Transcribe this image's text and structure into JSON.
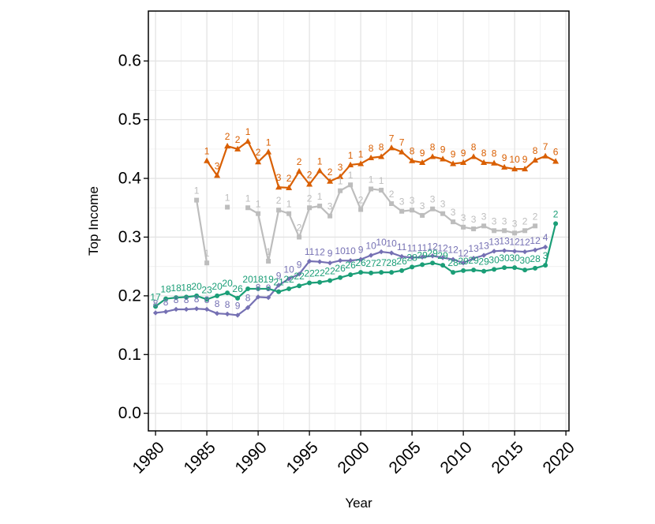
{
  "chart_data": {
    "type": "line",
    "xlabel": "Year",
    "ylabel": "Top Income",
    "xlim": [
      1979.3,
      2020.3
    ],
    "ylim": [
      -0.03,
      0.685
    ],
    "x_ticks": [
      "1980",
      "1985",
      "1990",
      "1995",
      "2000",
      "2005",
      "2010",
      "2015",
      "2020"
    ],
    "y_ticks": [
      "0.0",
      "0.1",
      "0.2",
      "0.3",
      "0.4",
      "0.5",
      "0.6"
    ],
    "grid": true,
    "legend": "none",
    "series": [
      {
        "color": "#D95F02",
        "marker": "triangle",
        "x": [
          1985,
          1986,
          1987,
          1988,
          1989,
          1990,
          1991,
          1992,
          1993,
          1994,
          1995,
          1996,
          1997,
          1998,
          1999,
          2000,
          2001,
          2002,
          2003,
          2004,
          2005,
          2006,
          2007,
          2008,
          2009,
          2010,
          2011,
          2012,
          2013,
          2014,
          2015,
          2016,
          2017,
          2018,
          2019
        ],
        "y": [
          0.43,
          0.405,
          0.455,
          0.45,
          0.463,
          0.428,
          0.445,
          0.385,
          0.384,
          0.412,
          0.39,
          0.413,
          0.395,
          0.403,
          0.423,
          0.425,
          0.435,
          0.437,
          0.452,
          0.445,
          0.43,
          0.427,
          0.437,
          0.433,
          0.425,
          0.427,
          0.437,
          0.427,
          0.426,
          0.419,
          0.416,
          0.416,
          0.431,
          0.438,
          0.429
        ],
        "labels": [
          "1",
          "3",
          "2",
          "2",
          "1",
          "2",
          "1",
          "3",
          "2",
          "2",
          "2",
          "1",
          "2",
          "3",
          "1",
          "1",
          "8",
          "8",
          "7",
          "7",
          "8",
          "9",
          "8",
          "9",
          "9",
          "9",
          "8",
          "8",
          "8",
          "9",
          "10",
          "9",
          "8",
          "7",
          "6"
        ]
      },
      {
        "color": "#BDBDBD",
        "marker": "square",
        "x": [
          1984,
          1985,
          null,
          1987,
          null,
          1989,
          1990,
          1991,
          1992,
          1993,
          1994,
          1995,
          1996,
          1997,
          1998,
          1999,
          2000,
          2001,
          2002,
          2003,
          2004,
          2005,
          2006,
          2007,
          2008,
          2009,
          2010,
          2011,
          2012,
          2013,
          2014,
          2015,
          2016,
          2017
        ],
        "y": [
          0.363,
          0.256,
          null,
          0.351,
          null,
          0.35,
          0.34,
          0.259,
          0.346,
          0.34,
          0.3,
          0.35,
          0.353,
          0.336,
          0.379,
          0.389,
          0.347,
          0.382,
          0.38,
          0.357,
          0.344,
          0.346,
          0.337,
          0.348,
          0.34,
          0.326,
          0.317,
          0.314,
          0.319,
          0.311,
          0.311,
          0.307,
          0.311,
          0.319
        ],
        "labels": [
          "1",
          "1",
          "",
          "1",
          "",
          "1",
          "1",
          "1",
          "2",
          "1",
          "2",
          "2",
          "1",
          "3",
          "1",
          "1",
          "2",
          "1",
          "1",
          "2",
          "3",
          "3",
          "3",
          "3",
          "3",
          "3",
          "3",
          "3",
          "3",
          "3",
          "3",
          "3",
          "2",
          "2"
        ]
      },
      {
        "color": "#7570B3",
        "marker": "diamond",
        "x": [
          1980,
          1981,
          1982,
          1983,
          1984,
          1985,
          1986,
          1987,
          1988,
          1989,
          1990,
          1991,
          1992,
          1993,
          1994,
          1995,
          1996,
          1997,
          1998,
          1999,
          2000,
          2001,
          2002,
          2003,
          2004,
          2005,
          2006,
          2007,
          2008,
          2009,
          2010,
          2011,
          2012,
          2013,
          2014,
          2015,
          2016,
          2017,
          2018
        ],
        "y": [
          0.171,
          0.173,
          0.177,
          0.177,
          0.178,
          0.177,
          0.17,
          0.169,
          0.167,
          0.18,
          0.198,
          0.197,
          0.218,
          0.229,
          0.237,
          0.259,
          0.258,
          0.256,
          0.26,
          0.26,
          0.262,
          0.269,
          0.275,
          0.273,
          0.267,
          0.265,
          0.266,
          0.268,
          0.265,
          0.262,
          0.256,
          0.264,
          0.269,
          0.276,
          0.277,
          0.276,
          0.275,
          0.278,
          0.283
        ],
        "labels": [
          "8",
          "8",
          "8",
          "8",
          "8",
          "8",
          "8",
          "8",
          "9",
          "8",
          "8",
          "9",
          "9",
          "10",
          "9",
          "11",
          "12",
          "9",
          "10",
          "10",
          "9",
          "10",
          "10",
          "10",
          "11",
          "11",
          "11",
          "12",
          "12",
          "12",
          "12",
          "13",
          "13",
          "13",
          "13",
          "12",
          "12",
          "12",
          "4"
        ]
      },
      {
        "color": "#1B9E77",
        "marker": "circle",
        "x": [
          1980,
          1981,
          1982,
          1983,
          1984,
          1985,
          1986,
          1987,
          1988,
          1989,
          1990,
          1991,
          1992,
          1993,
          1994,
          1995,
          1996,
          1997,
          1998,
          1999,
          2000,
          2001,
          2002,
          2003,
          2004,
          2005,
          2006,
          2007,
          2008,
          2009,
          2010,
          2011,
          2012,
          2013,
          2014,
          2015,
          2016,
          2017,
          2018,
          2019
        ],
        "y": [
          0.182,
          0.195,
          0.197,
          0.198,
          0.2,
          0.194,
          0.2,
          0.205,
          0.196,
          0.212,
          0.212,
          0.212,
          0.207,
          0.212,
          0.217,
          0.222,
          0.223,
          0.226,
          0.231,
          0.236,
          0.24,
          0.239,
          0.24,
          0.24,
          0.243,
          0.249,
          0.253,
          0.256,
          0.252,
          0.24,
          0.243,
          0.244,
          0.242,
          0.245,
          0.248,
          0.248,
          0.244,
          0.247,
          0.252,
          0.323
        ],
        "labels": [
          "17",
          "18",
          "18",
          "18",
          "20",
          "23",
          "20",
          "20",
          "26",
          "20",
          "18",
          "19",
          "21",
          "22",
          "22",
          "22",
          "22",
          "22",
          "26",
          "26",
          "26",
          "27",
          "27",
          "28",
          "26",
          "28",
          "29",
          "29",
          "29",
          "28",
          "29",
          "29",
          "29",
          "30",
          "30",
          "30",
          "30",
          "28",
          "3",
          "2"
        ]
      }
    ]
  }
}
